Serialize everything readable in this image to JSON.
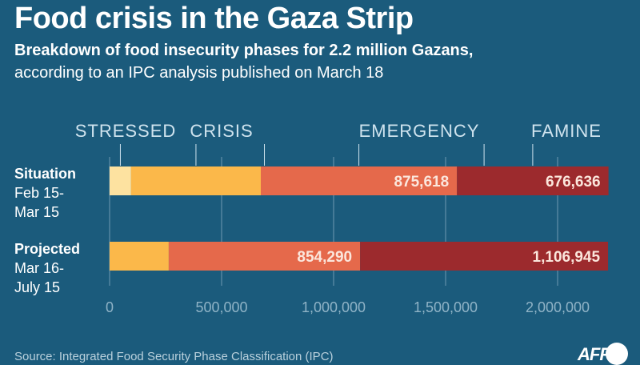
{
  "header": {
    "title": "Food crisis in the Gaza Strip",
    "subtitle": "Breakdown of food insecurity phases for 2.2 million Gazans,",
    "subtitle2": "according to an IPC analysis published on March 18"
  },
  "footer": {
    "source": "Source: Integrated Food Security Phase Classification (IPC)",
    "logo": "AFP"
  },
  "chart_data": {
    "type": "bar",
    "orientation": "horizontal",
    "stacked": true,
    "title": "Food crisis in the Gaza Strip",
    "xlabel": "",
    "ylabel": "",
    "xlim": [
      0,
      2250000
    ],
    "x_ticks": [
      0,
      500000,
      1000000,
      1500000,
      2000000
    ],
    "x_tick_labels": [
      "0",
      "500,000",
      "1,000,000",
      "1,500,000",
      "2,000,000"
    ],
    "grid": true,
    "legend_placement": "top",
    "categories": [
      {
        "label": "Situation",
        "sublabel": [
          "Feb 15-",
          "Mar 15"
        ]
      },
      {
        "label": "Projected",
        "sublabel": [
          "Mar 16-",
          "July 15"
        ]
      }
    ],
    "series": [
      {
        "name": "STRESSED",
        "color": "#fde2a0",
        "values": [
          96000,
          0
        ],
        "labels": [
          "",
          ""
        ]
      },
      {
        "name": "CRISIS",
        "color": "#fbb84a",
        "values": [
          579000,
          264000
        ],
        "labels": [
          "",
          ""
        ]
      },
      {
        "name": "EMERGENCY",
        "color": "#e5694b",
        "values": [
          875618,
          854290
        ],
        "labels": [
          "875,618",
          "854,290"
        ]
      },
      {
        "name": "FAMINE",
        "color": "#9c2a2d",
        "values": [
          676636,
          1106945
        ],
        "labels": [
          "676,636",
          "1,106,945"
        ]
      }
    ],
    "legend_labels": [
      "STRESSED",
      "CRISIS",
      "EMERGENCY",
      "FAMINE"
    ]
  },
  "colors": {
    "background": "#1b5b7c",
    "gridline": "#6f9ab2",
    "axis_text": "#8fb3c6",
    "label_text": "#cfe3ee"
  }
}
